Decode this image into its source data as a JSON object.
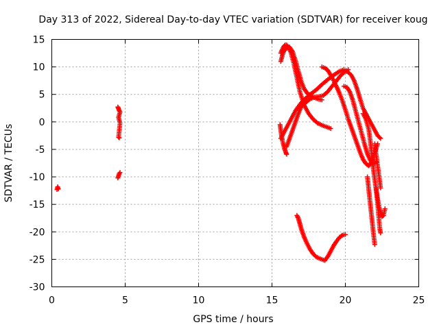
{
  "chart_data": {
    "type": "scatter",
    "title": "Day 313 of 2022, Sidereal Day-to-day VTEC variation (SDTVAR) for receiver koug",
    "xlabel": "GPS time / hours",
    "ylabel": "SDTVAR / TECUs",
    "xlim": [
      0,
      25
    ],
    "ylim": [
      -30,
      15
    ],
    "xticks": [
      0,
      5,
      10,
      15,
      20,
      25
    ],
    "yticks": [
      -30,
      -25,
      -20,
      -15,
      -10,
      -5,
      0,
      5,
      10,
      15
    ],
    "grid": true,
    "marker": "+",
    "color": "#ff0000",
    "segments": [
      {
        "name": "early-1",
        "x": [
          0.35,
          0.4,
          0.45
        ],
        "y": [
          -12.3,
          -11.8,
          -12.2
        ]
      },
      {
        "name": "early-2",
        "x": [
          4.5,
          4.55,
          4.6,
          4.65,
          4.55,
          4.6,
          4.65,
          4.55,
          4.6
        ],
        "y": [
          2.7,
          2.4,
          2.0,
          1.8,
          0.8,
          0.3,
          -0.2,
          -2.8,
          -2.9
        ]
      },
      {
        "name": "early-3",
        "x": [
          4.5,
          4.55,
          4.6,
          4.65
        ],
        "y": [
          -10.2,
          -9.8,
          -9.4,
          -9.2
        ]
      },
      {
        "name": "arc-a",
        "x": [
          15.55,
          15.6,
          15.65,
          15.7,
          15.75,
          15.8,
          15.85,
          15.9,
          15.95,
          16.0
        ],
        "y": [
          -0.5,
          -1.5,
          -2.5,
          -3.2,
          -3.8,
          -4.3,
          -4.8,
          -5.2,
          -5.6,
          -5.9
        ]
      },
      {
        "name": "arc-b",
        "x": [
          15.6,
          15.8,
          16.0,
          16.2,
          16.4,
          16.6,
          16.8,
          17.0,
          17.3,
          17.6,
          18.0,
          18.4,
          18.8,
          19.2,
          19.6,
          19.9
        ],
        "y": [
          -3.0,
          -2.0,
          -1.0,
          0.0,
          1.0,
          2.0,
          2.8,
          3.5,
          4.3,
          5.0,
          5.8,
          6.8,
          7.7,
          8.5,
          9.2,
          9.5
        ]
      },
      {
        "name": "arc-c",
        "x": [
          15.6,
          15.7,
          15.8,
          15.9,
          16.0,
          16.1,
          16.3,
          16.5,
          16.7,
          16.9,
          17.2,
          17.5,
          17.8,
          18.1,
          18.4,
          18.7,
          19.0
        ],
        "y": [
          12.5,
          13.2,
          13.7,
          14.0,
          14.0,
          13.6,
          12.5,
          10.5,
          8.0,
          5.5,
          3.0,
          1.5,
          0.5,
          -0.2,
          -0.6,
          -0.9,
          -1.2
        ]
      },
      {
        "name": "arc-d",
        "x": [
          15.6,
          15.7,
          15.8,
          16.0,
          16.2,
          16.4,
          16.6,
          16.8,
          17.0,
          17.2,
          17.4,
          17.6,
          17.8,
          18.0,
          18.2,
          18.4
        ],
        "y": [
          11.0,
          12.0,
          12.8,
          13.5,
          13.6,
          12.8,
          11.2,
          9.2,
          7.3,
          6.0,
          5.2,
          4.8,
          4.5,
          4.3,
          4.1,
          4.0
        ]
      },
      {
        "name": "arc-e",
        "x": [
          16.0,
          16.2,
          16.4,
          16.6,
          16.8,
          17.0,
          17.3,
          17.6,
          17.9,
          18.2,
          18.5,
          18.8,
          19.1,
          19.4,
          19.7,
          20.0,
          20.2
        ],
        "y": [
          -4.5,
          -3.0,
          -1.5,
          0.0,
          1.5,
          2.8,
          3.5,
          4.2,
          4.5,
          4.6,
          4.8,
          5.5,
          6.5,
          7.5,
          8.5,
          9.2,
          9.5
        ]
      },
      {
        "name": "arc-f",
        "x": [
          18.4,
          18.6,
          18.8,
          19.0,
          19.2,
          19.4,
          19.6,
          19.8,
          20.0,
          20.2,
          20.4,
          20.6,
          20.8,
          21.0,
          21.2,
          21.4,
          21.6,
          21.8,
          22.0,
          22.2
        ],
        "y": [
          10.0,
          9.8,
          9.4,
          8.5,
          7.5,
          6.4,
          5.2,
          3.8,
          2.2,
          0.5,
          -1.0,
          -2.5,
          -4.0,
          -5.5,
          -6.8,
          -7.6,
          -8.0,
          -7.2,
          -5.5,
          -4.0
        ]
      },
      {
        "name": "arc-g",
        "x": [
          20.0,
          20.2,
          20.4,
          20.6,
          20.8,
          21.0,
          21.2,
          21.4,
          21.6,
          21.8,
          22.0,
          22.2,
          22.4
        ],
        "y": [
          9.3,
          9.0,
          8.5,
          7.5,
          6.0,
          4.2,
          2.5,
          1.5,
          0.5,
          -0.5,
          -1.5,
          -2.5,
          -3.0
        ]
      },
      {
        "name": "arc-h",
        "x": [
          19.9,
          20.1,
          20.3,
          20.5,
          20.7,
          20.9,
          21.1,
          21.3,
          21.5,
          21.7,
          21.9,
          22.1
        ],
        "y": [
          6.5,
          6.3,
          5.5,
          4.0,
          2.0,
          0.0,
          -2.0,
          -4.0,
          -5.8,
          -7.0,
          -7.6,
          -7.3
        ]
      },
      {
        "name": "arc-i",
        "x": [
          21.2,
          21.4,
          21.6,
          21.7,
          21.8,
          21.9,
          22.0,
          22.1,
          22.2,
          22.3,
          22.4,
          22.5,
          22.6,
          22.7
        ],
        "y": [
          1.5,
          0.5,
          -1.5,
          -3.5,
          -6.0,
          -8.5,
          -10.5,
          -12.5,
          -14.0,
          -15.5,
          -16.5,
          -17.2,
          -17.0,
          -15.8
        ]
      },
      {
        "name": "arc-j",
        "x": [
          21.5,
          21.6,
          21.7,
          21.8,
          21.9,
          22.0
        ],
        "y": [
          -10.0,
          -12.5,
          -15.0,
          -17.5,
          -20.0,
          -22.3
        ]
      },
      {
        "name": "arc-k",
        "x": [
          22.1,
          22.15,
          22.2,
          22.25,
          22.3,
          22.35,
          22.4
        ],
        "y": [
          -12.0,
          -13.5,
          -15.0,
          -16.5,
          -18.0,
          -19.5,
          -20.2
        ]
      },
      {
        "name": "arc-l",
        "x": [
          22.0,
          22.1,
          22.2,
          22.3,
          22.4
        ],
        "y": [
          -4.0,
          -6.0,
          -8.0,
          -10.0,
          -12.0
        ]
      },
      {
        "name": "arc-m",
        "x": [
          16.7,
          16.8,
          16.9,
          17.0,
          17.2,
          17.4,
          17.6,
          17.8,
          18.0,
          18.2,
          18.4,
          18.6
        ],
        "y": [
          -17.0,
          -17.6,
          -18.5,
          -19.5,
          -21.0,
          -22.2,
          -23.2,
          -24.0,
          -24.5,
          -24.8,
          -25.0,
          -25.2
        ]
      },
      {
        "name": "arc-n",
        "x": [
          18.6,
          18.8,
          19.0,
          19.2,
          19.4,
          19.6,
          19.8,
          20.0
        ],
        "y": [
          -25.2,
          -24.5,
          -23.5,
          -22.5,
          -21.7,
          -21.0,
          -20.6,
          -20.5
        ]
      }
    ]
  }
}
